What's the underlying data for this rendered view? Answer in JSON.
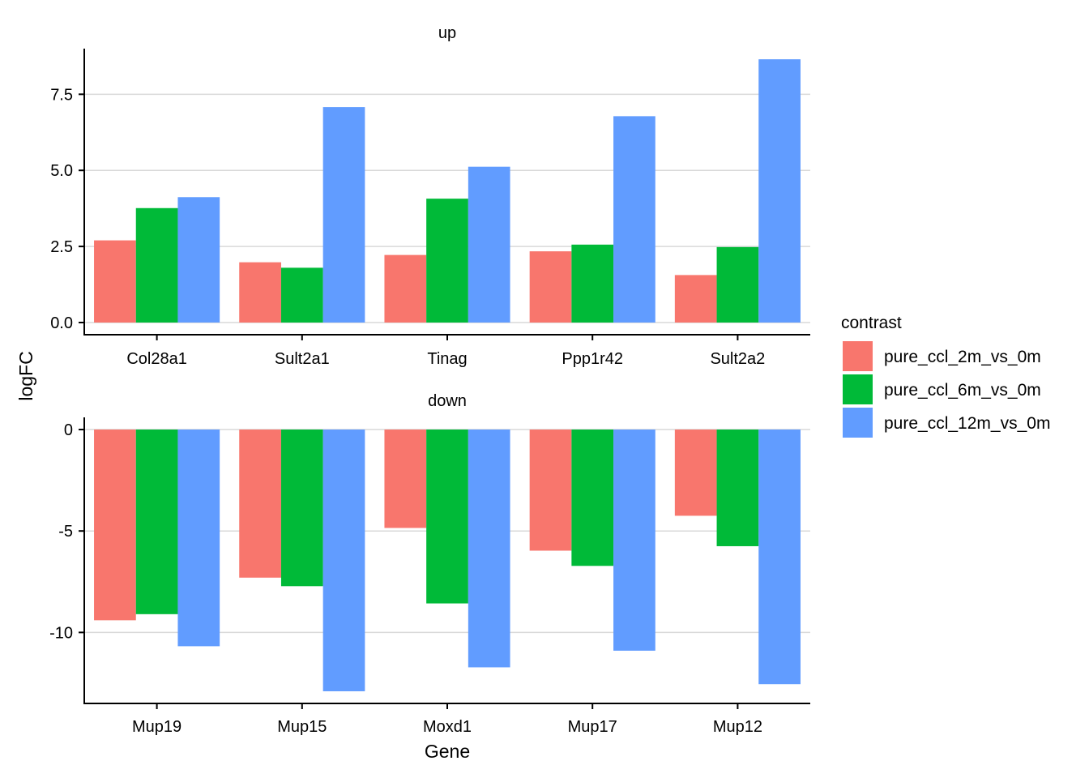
{
  "chart_data": {
    "type": "bar",
    "xlabel": "Gene",
    "ylabel": "logFC",
    "legend": {
      "title": "contrast",
      "placement": "right"
    },
    "series_meta": [
      {
        "name": "pure_ccl_2m_vs_0m",
        "color": "#F8766D"
      },
      {
        "name": "pure_ccl_6m_vs_0m",
        "color": "#00BA38"
      },
      {
        "name": "pure_ccl_12m_vs_0m",
        "color": "#619CFF"
      }
    ],
    "grid": "major-y",
    "panels": [
      {
        "strip": "up",
        "categories": [
          "Col28a1",
          "Sult2a1",
          "Tinag",
          "Ppp1r42",
          "Sult2a2"
        ],
        "ylim": [
          -0.4,
          9.0
        ],
        "yticks": [
          0.0,
          2.5,
          5.0,
          7.5
        ],
        "ytick_labels": [
          "0.0",
          "2.5",
          "5.0",
          "7.5"
        ],
        "series": [
          {
            "name": "pure_ccl_2m_vs_0m",
            "values": [
              2.7,
              1.98,
              2.22,
              2.34,
              1.56
            ]
          },
          {
            "name": "pure_ccl_6m_vs_0m",
            "values": [
              3.76,
              1.8,
              4.07,
              2.56,
              2.48
            ]
          },
          {
            "name": "pure_ccl_12m_vs_0m",
            "values": [
              4.12,
              7.08,
              5.12,
              6.78,
              8.65
            ]
          }
        ]
      },
      {
        "strip": "down",
        "categories": [
          "Mup19",
          "Mup15",
          "Moxd1",
          "Mup17",
          "Mup12"
        ],
        "ylim": [
          -13.5,
          0.6
        ],
        "yticks": [
          0,
          -5,
          -10
        ],
        "ytick_labels": [
          "0",
          "-5",
          "-10"
        ],
        "series": [
          {
            "name": "pure_ccl_2m_vs_0m",
            "values": [
              -9.4,
              -7.3,
              -4.85,
              -5.97,
              -4.25
            ]
          },
          {
            "name": "pure_ccl_6m_vs_0m",
            "values": [
              -9.1,
              -7.72,
              -8.57,
              -6.72,
              -5.75
            ]
          },
          {
            "name": "pure_ccl_12m_vs_0m",
            "values": [
              -10.68,
              -12.9,
              -11.72,
              -10.9,
              -12.55
            ]
          }
        ]
      }
    ]
  }
}
